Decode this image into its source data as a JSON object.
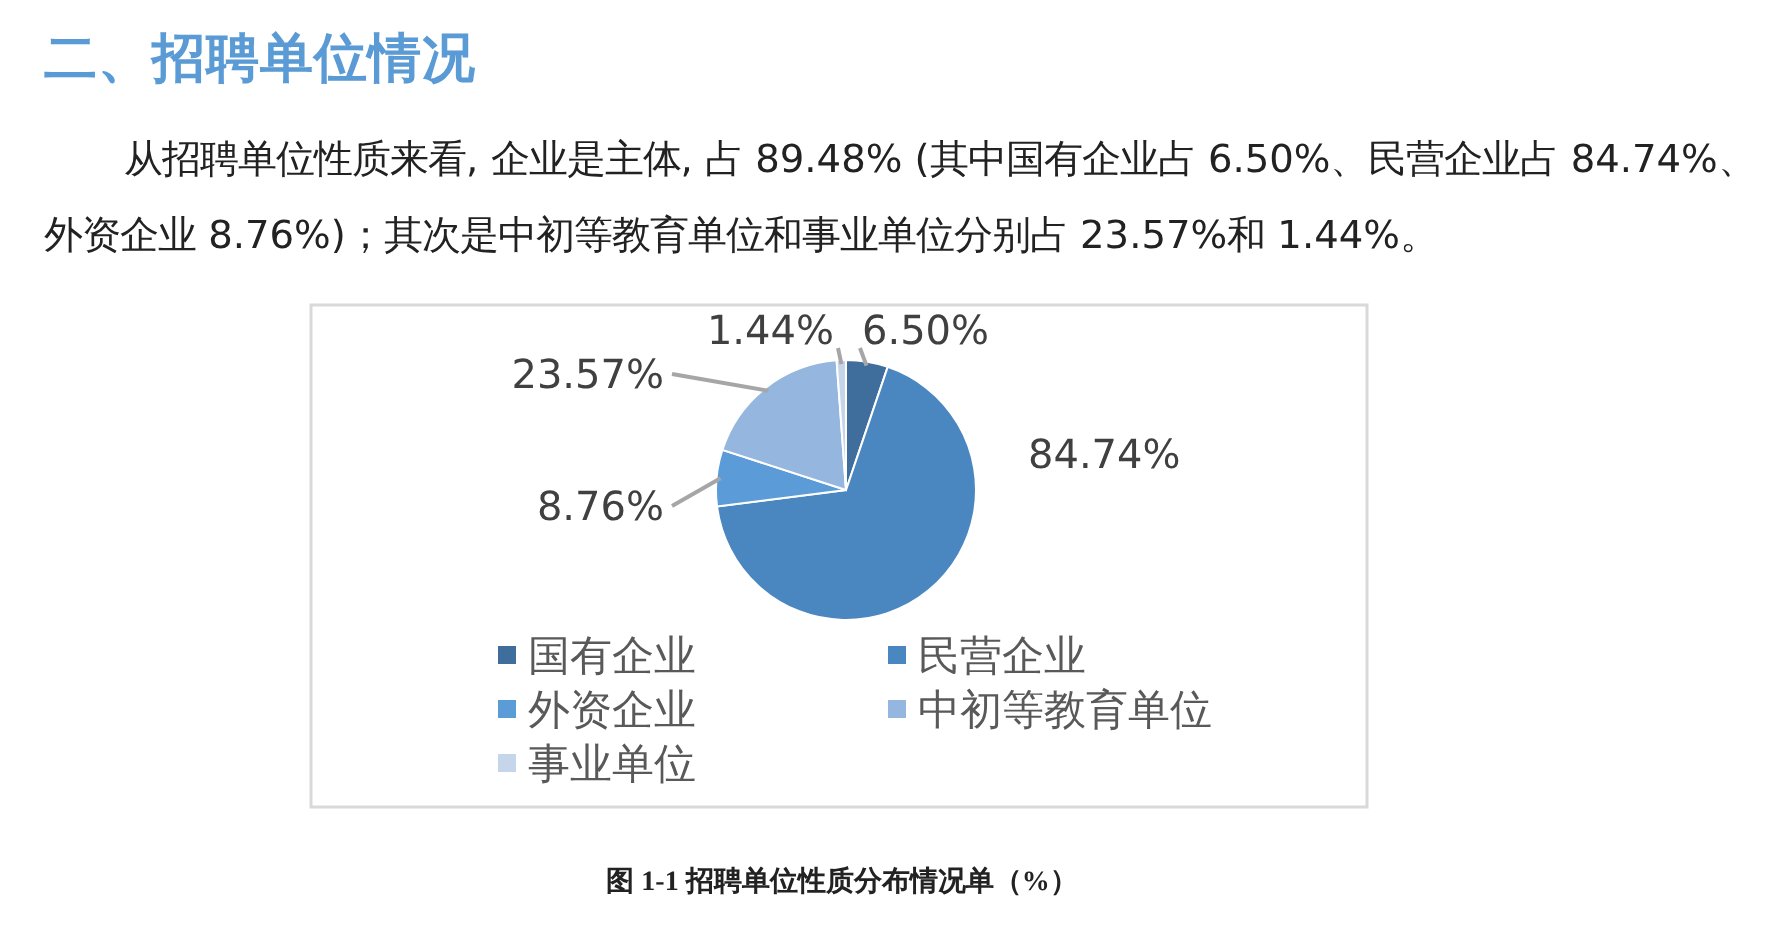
{
  "chart_data": {
    "type": "pie",
    "title": "二、招聘单位情况",
    "subtitle": "从招聘单位性质来看, 企业是主体, 占 89.48% (其中国有企业占 6.50%、民营企业占 84.74%、外资企业 8.76%)；其次是中初等教育单位和事业单位分别占 23.57%和 1.44%。",
    "annotations": [
      "图 1-1 招聘单位性质分布情况单（%）"
    ],
    "categories": [
      "国有企业",
      "民营企业",
      "外资企业",
      "中初等教育单位",
      "事业单位"
    ],
    "values": [
      6.5,
      84.74,
      8.76,
      23.57,
      1.44
    ],
    "colors": [
      "#3f6d9c",
      "#4a86c0",
      "#5b9bd8",
      "#95b6de",
      "#c5d5ea"
    ],
    "value_labels": [
      "6.50%",
      "84.74%",
      "8.76%",
      "23.57%",
      "1.44%"
    ],
    "legend": "bottom"
  }
}
